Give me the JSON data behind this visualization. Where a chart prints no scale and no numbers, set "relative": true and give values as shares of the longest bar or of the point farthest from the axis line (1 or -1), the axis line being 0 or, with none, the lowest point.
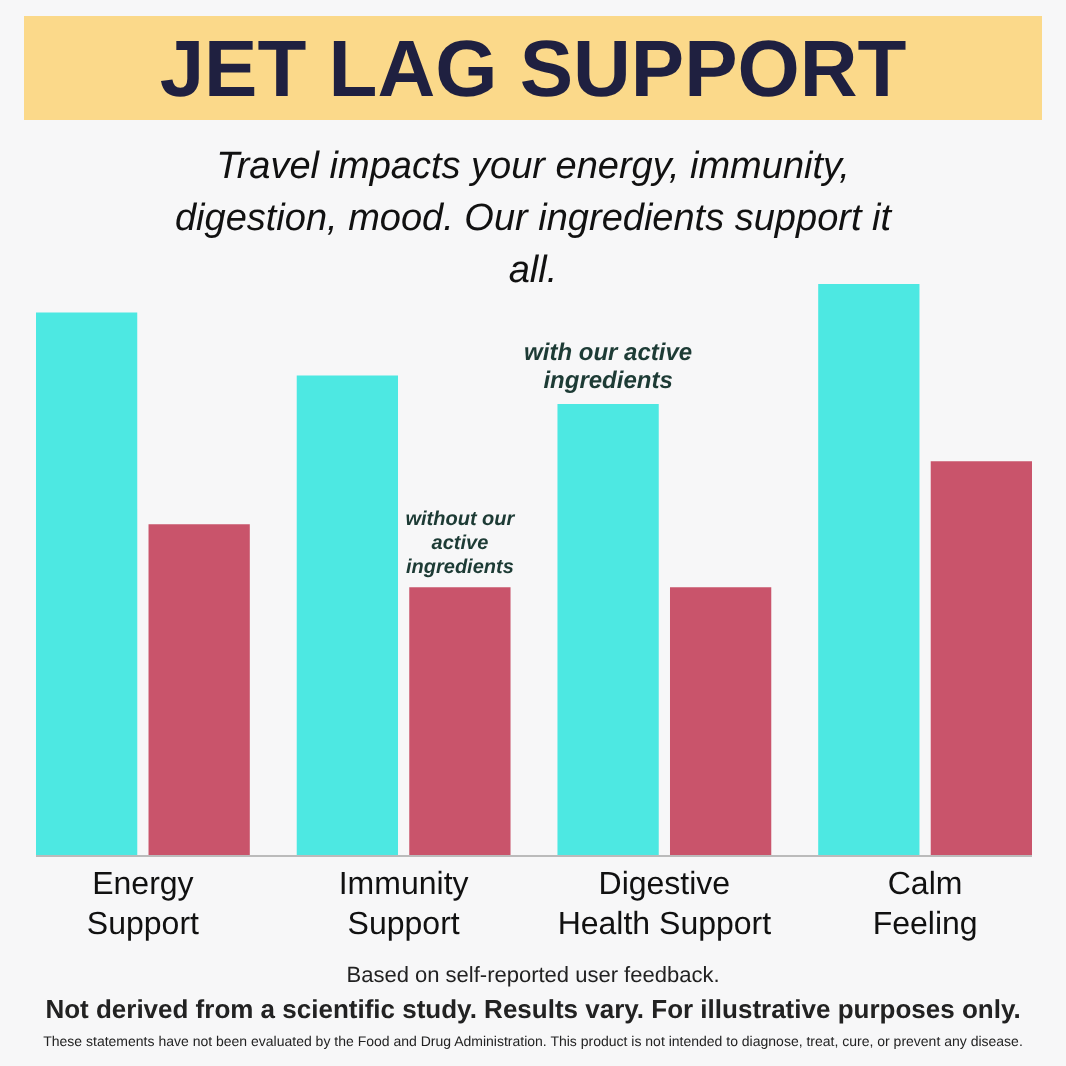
{
  "chart_data": {
    "type": "bar",
    "title": "JET LAG SUPPORT",
    "subtitle": "Travel impacts your energy, immunity, digestion, mood. Our ingredients support it all.",
    "categories": [
      "Energy Support",
      "Immunity Support",
      "Digestive Health Support",
      "Calm Feeling"
    ],
    "relative": true,
    "series": [
      {
        "name": "with our active ingredients",
        "color": "#4de8e2",
        "values": [
          0.95,
          0.84,
          0.79,
          1
        ]
      },
      {
        "name": "without our active ingredients",
        "color": "#c9546b",
        "values": [
          0.58,
          0.47,
          0.47,
          0.69
        ]
      }
    ],
    "annotations": [
      "Based on self-reported user feedback.",
      "Not derived from a scientific study. Results vary. For illustrative purposes only.",
      "These statements have not been evaluated by the Food and Drug Administration. This product is not intended to diagnose, treat, cure, or prevent any disease."
    ]
  }
}
